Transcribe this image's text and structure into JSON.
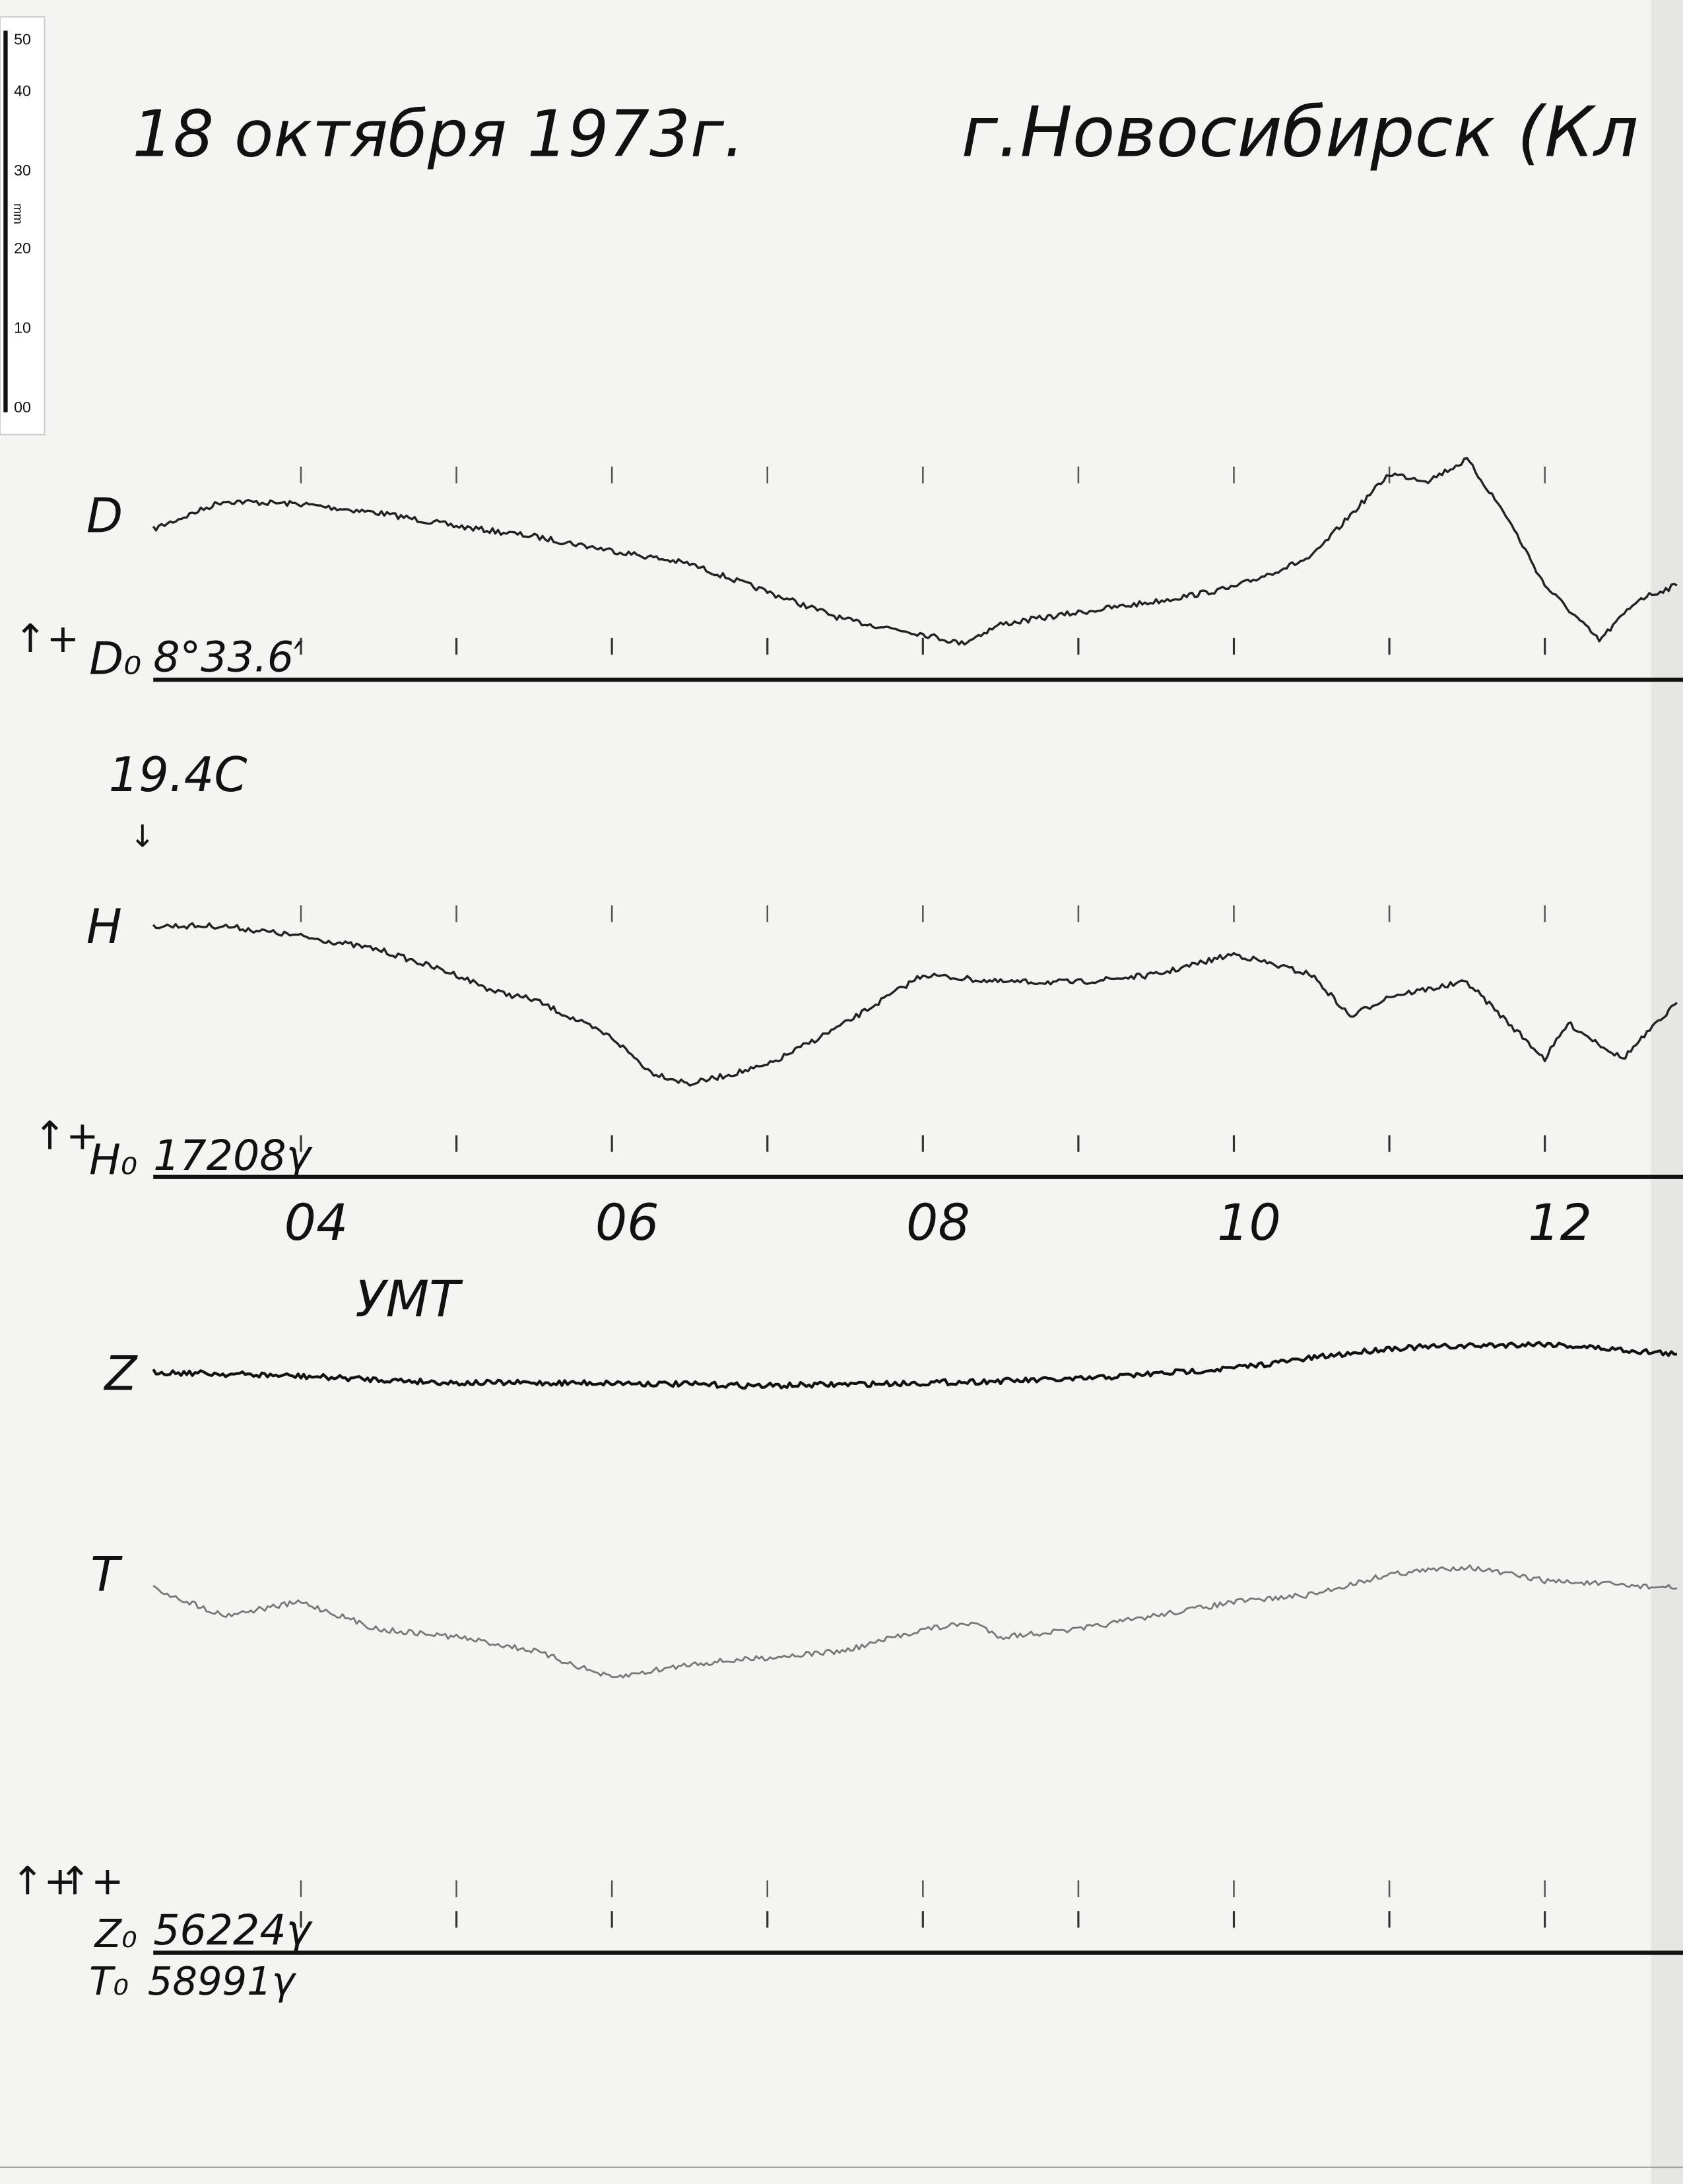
{
  "header": {
    "date": "18 октября 1973г.",
    "station": "г.Новосибирск (Кл"
  },
  "ruler": {
    "unit": "mm",
    "ticks": [
      "50",
      "40",
      "30",
      "20",
      "10",
      "00"
    ]
  },
  "time_axis": {
    "labels": [
      "04",
      "06",
      "08",
      "10",
      "12"
    ],
    "label_hours": [
      4,
      6,
      8,
      10,
      12
    ],
    "unit_label": "УМТ"
  },
  "annotations": {
    "temperature": "19.4C",
    "plus_arrow": "↑+"
  },
  "colors": {
    "paper": "#f4f4f3",
    "ink": "#111111",
    "trace_T": "#777777"
  },
  "chart_data": {
    "type": "line",
    "title": "18 октября 1973г. г.Новосибирск (Кл",
    "xlabel": "УМТ",
    "x_unit": "hours UT",
    "xlim": [
      3.05,
      12.85
    ],
    "y_unit": "mm above baseline",
    "grid": false,
    "panels": [
      {
        "label": "D",
        "baseline_label": "D₀",
        "baseline_value": "8°33.6′",
        "series": [
          {
            "name": "D",
            "x": [
              3.05,
              3.5,
              4,
              4.5,
              5,
              5.5,
              6,
              6.5,
              7,
              7.5,
              8,
              8.25,
              8.5,
              9,
              9.5,
              10,
              10.5,
              10.75,
              11,
              11.25,
              11.5,
              11.75,
              12,
              12.35,
              12.6,
              12.85
            ],
            "y": [
              20.4,
              24.2,
              23.8,
              22.6,
              20.8,
              19.4,
              17.5,
              15.7,
              11.9,
              8.1,
              6.2,
              4.9,
              7.5,
              9.1,
              10.6,
              12.5,
              16.6,
              22.3,
              27.9,
              27.0,
              29.8,
              22.3,
              12.8,
              5.3,
              10.9,
              12.8
            ]
          }
        ]
      },
      {
        "label": "H",
        "baseline_label": "H₀",
        "baseline_value": "17208γ",
        "series": [
          {
            "name": "H",
            "x": [
              3.05,
              3.5,
              4,
              4.5,
              5,
              5.25,
              5.5,
              6,
              6.25,
              6.5,
              7,
              7.5,
              8,
              8.5,
              9,
              9.5,
              10,
              10.5,
              10.75,
              11,
              11.5,
              12,
              12.15,
              12.5,
              12.85
            ],
            "y": [
              34.0,
              34.0,
              32.6,
              30.8,
              27.4,
              25.1,
              24.0,
              18.9,
              14.2,
              12.6,
              15.1,
              20.8,
              27.4,
              26.4,
              26.4,
              27.4,
              30.2,
              27.4,
              21.7,
              24.5,
              26.4,
              16.0,
              20.8,
              16.0,
              23.6
            ]
          }
        ]
      },
      {
        "labels": [
          "Z",
          "T"
        ],
        "baseline_labels": [
          "Z₀",
          "T₀"
        ],
        "baseline_values": [
          "56224γ",
          "58991γ"
        ],
        "series": [
          {
            "name": "Z",
            "x": [
              3.05,
              4,
              5,
              6,
              7,
              8,
              9,
              10,
              11,
              12,
              12.85
            ],
            "y": [
              78.7,
              78.1,
              77.2,
              77.2,
              76.8,
              77.2,
              77.7,
              79.2,
              81.9,
              82.5,
              81.1
            ]
          },
          {
            "name": "T",
            "x": [
              3.05,
              3.5,
              4,
              4.5,
              5,
              5.5,
              6,
              6.5,
              7,
              7.5,
              8,
              8.33,
              8.5,
              9,
              9.5,
              10,
              10.5,
              11,
              11.5,
              12,
              12.85
            ],
            "y": [
              49.4,
              45.7,
              47.5,
              43.8,
              42.8,
              40.9,
              37.2,
              39.1,
              40.0,
              40.9,
              43.8,
              44.7,
              42.8,
              43.8,
              45.7,
              47.5,
              48.5,
              51.3,
              52.3,
              50.4,
              49.4
            ]
          }
        ]
      }
    ]
  }
}
